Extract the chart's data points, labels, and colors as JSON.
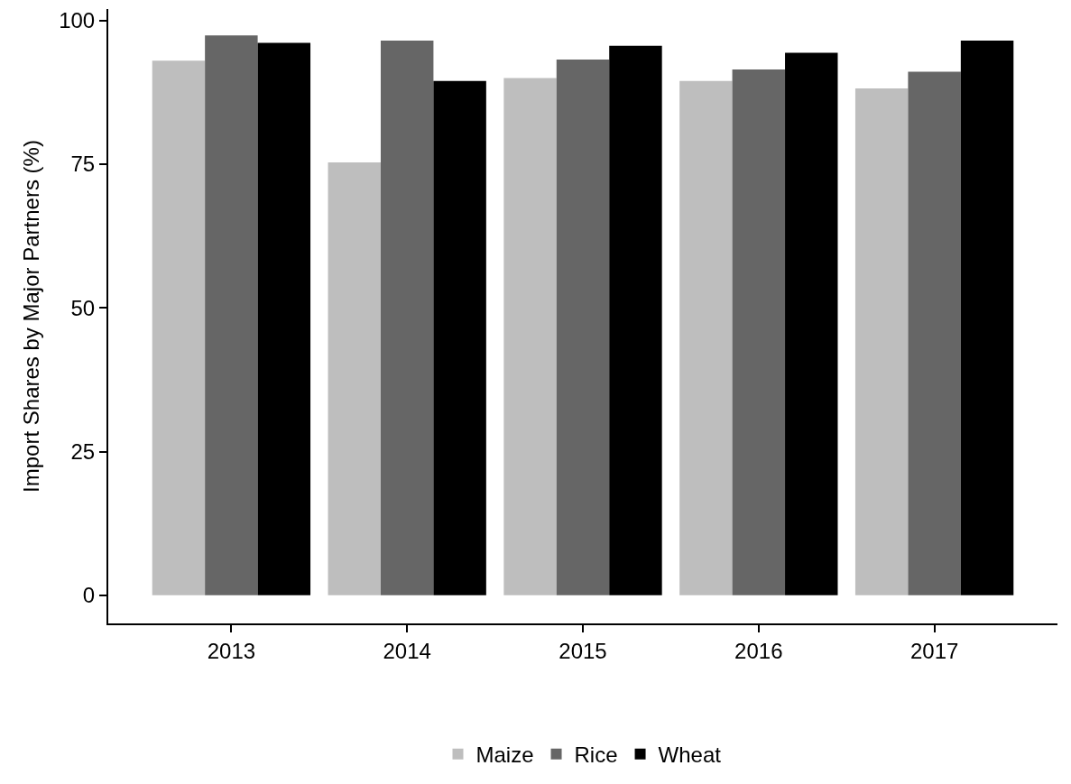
{
  "chart_data": {
    "type": "bar",
    "ylabel": "Import Shares by Major Partners (%)",
    "categories": [
      "2013",
      "2014",
      "2015",
      "2016",
      "2017"
    ],
    "series": [
      {
        "name": "Maize",
        "color": "#bebebe",
        "values": [
          93.0,
          75.3,
          90.0,
          89.5,
          88.2
        ]
      },
      {
        "name": "Rice",
        "color": "#666666",
        "values": [
          97.4,
          96.5,
          93.2,
          91.5,
          91.1
        ]
      },
      {
        "name": "Wheat",
        "color": "#000000",
        "values": [
          96.1,
          89.5,
          95.6,
          94.4,
          96.5
        ]
      }
    ],
    "ylim": [
      -4.9,
      102
    ],
    "yticks": [
      0,
      25,
      50,
      75,
      100
    ],
    "legend": "bottom"
  }
}
